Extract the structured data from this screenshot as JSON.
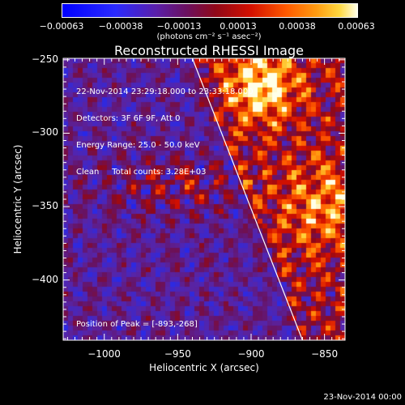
{
  "colorbar": {
    "ticks": [
      "−0.00063",
      "−0.00038",
      "−0.00013",
      "0.00013",
      "0.00038",
      "0.00063"
    ],
    "units": "(photons cm⁻² s⁻¹ asec⁻²)"
  },
  "chart_data": {
    "type": "heatmap",
    "title": "Reconstructed RHESSI Image",
    "xlabel": "Heliocentric X (arcsec)",
    "ylabel": "Heliocentric Y (arcsec)",
    "xlim": [
      -1028,
      -836
    ],
    "ylim": [
      -441,
      -249
    ],
    "x_ticks": [
      "−1000",
      "−950",
      "−900",
      "−850"
    ],
    "x_tick_values": [
      -1000,
      -950,
      -900,
      -850
    ],
    "y_ticks": [
      "−250",
      "−300",
      "−350",
      "−400"
    ],
    "y_tick_values": [
      -250,
      -300,
      -350,
      -400
    ],
    "color_range": [
      -0.00063,
      0.00063
    ],
    "limb_line": [
      [
        -940,
        -249
      ],
      [
        -865,
        -441
      ]
    ],
    "peak_position": [
      -893,
      -268
    ]
  },
  "info_lines": [
    "22-Nov-2014 23:29:18.000 to 23:33:18.000",
    "Detectors: 3F 6F 9F, Att 0",
    "Energy Range: 25.0 - 50.0 keV",
    "Clean     Total counts: 3.28E+03"
  ],
  "peak_label": "Position of Peak = [-893,-268]",
  "timestamp": "23-Nov-2014 00:00"
}
